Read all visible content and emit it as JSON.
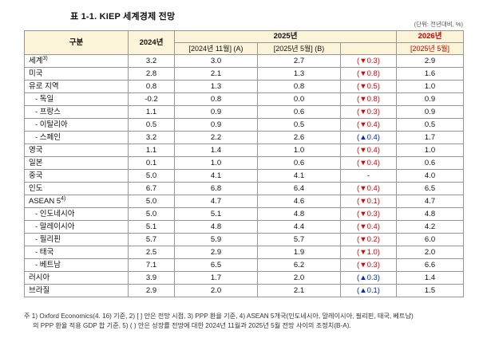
{
  "page": {
    "title": "표 1-1. KIEP 세계경제 전망",
    "unit_note": "(단위: 전년대비, %)"
  },
  "table": {
    "headers": {
      "category": "구분",
      "y2024": "2024년",
      "y2025": "2025년",
      "y2026": "2026년",
      "sub_a": "[2024년 11월] (A)",
      "sub_b": "[2025년 5월] (B)",
      "sub_delta": "",
      "sub_2026": "[2025년 5월]"
    },
    "rows": [
      {
        "label": "세계",
        "sup": "3)",
        "indent": false,
        "v2024": "3.2",
        "a": "3.0",
        "b": "2.7",
        "delta": "(▼0.3)",
        "delta_dir": "down",
        "v2026": "2.9"
      },
      {
        "label": "미국",
        "indent": false,
        "v2024": "2.8",
        "a": "2.1",
        "b": "1.3",
        "delta": "(▼0.8)",
        "delta_dir": "down",
        "v2026": "1.6"
      },
      {
        "label": "유로 지역",
        "indent": false,
        "v2024": "0.8",
        "a": "1.3",
        "b": "0.8",
        "delta": "(▼0.5)",
        "delta_dir": "down",
        "v2026": "1.0"
      },
      {
        "label": "- 독일",
        "indent": true,
        "v2024": "-0.2",
        "a": "0.8",
        "b": "0.0",
        "delta": "(▼0.8)",
        "delta_dir": "down",
        "v2026": "0.9"
      },
      {
        "label": "- 프랑스",
        "indent": true,
        "v2024": "1.1",
        "a": "0.9",
        "b": "0.6",
        "delta": "(▼0.3)",
        "delta_dir": "down",
        "v2026": "0.9"
      },
      {
        "label": "- 이탈리아",
        "indent": true,
        "v2024": "0.5",
        "a": "0.9",
        "b": "0.5",
        "delta": "(▼0.4)",
        "delta_dir": "down",
        "v2026": "0.5"
      },
      {
        "label": "- 스페인",
        "indent": true,
        "v2024": "3.2",
        "a": "2.2",
        "b": "2.6",
        "delta": "(▲0.4)",
        "delta_dir": "up",
        "v2026": "1.7"
      },
      {
        "label": "영국",
        "indent": false,
        "v2024": "1.1",
        "a": "1.4",
        "b": "1.0",
        "delta": "(▼0.4)",
        "delta_dir": "down",
        "v2026": "1.0"
      },
      {
        "label": "일본",
        "indent": false,
        "v2024": "0.1",
        "a": "1.0",
        "b": "0.6",
        "delta": "(▼0.4)",
        "delta_dir": "down",
        "v2026": "0.6"
      },
      {
        "label": "중국",
        "indent": false,
        "v2024": "5.0",
        "a": "4.1",
        "b": "4.1",
        "delta": "-",
        "delta_dir": "none",
        "v2026": "4.0"
      },
      {
        "label": "인도",
        "indent": false,
        "v2024": "6.7",
        "a": "6.8",
        "b": "6.4",
        "delta": "(▼0.4)",
        "delta_dir": "down",
        "v2026": "6.5"
      },
      {
        "label": "ASEAN 5",
        "sup": "4)",
        "indent": false,
        "v2024": "5.0",
        "a": "4.7",
        "b": "4.6",
        "delta": "(▼0.1)",
        "delta_dir": "down",
        "v2026": "4.7"
      },
      {
        "label": "- 인도네시아",
        "indent": true,
        "v2024": "5.0",
        "a": "5.1",
        "b": "4.8",
        "delta": "(▼0.3)",
        "delta_dir": "down",
        "v2026": "4.8"
      },
      {
        "label": "- 말레이시아",
        "indent": true,
        "v2024": "5.1",
        "a": "4.8",
        "b": "4.4",
        "delta": "(▼0.4)",
        "delta_dir": "down",
        "v2026": "4.2"
      },
      {
        "label": "- 필리핀",
        "indent": true,
        "v2024": "5.7",
        "a": "5.9",
        "b": "5.7",
        "delta": "(▼0.2)",
        "delta_dir": "down",
        "v2026": "6.0"
      },
      {
        "label": "- 태국",
        "indent": true,
        "v2024": "2.5",
        "a": "2.9",
        "b": "1.9",
        "delta": "(▼1.0)",
        "delta_dir": "down",
        "v2026": "2.0"
      },
      {
        "label": "- 베트남",
        "indent": true,
        "v2024": "7.1",
        "a": "6.5",
        "b": "6.2",
        "delta": "(▼0.3)",
        "delta_dir": "down",
        "v2026": "6.6"
      },
      {
        "label": "러시아",
        "indent": false,
        "v2024": "3.9",
        "a": "1.7",
        "b": "2.0",
        "delta": "(▲0.3)",
        "delta_dir": "up",
        "v2026": "1.4"
      },
      {
        "label": "브라질",
        "indent": false,
        "v2024": "2.9",
        "a": "2.0",
        "b": "2.1",
        "delta": "(▲0.1)",
        "delta_dir": "up",
        "v2026": "1.5"
      }
    ]
  },
  "footnotes": [
    "주 1) Oxford Economics(4. 16) 기준, 2) [ ] 안은 전망 시점, 3) PPP 환율 기준, 4) ASEAN 5개국(인도네시아, 말레이시아, 필리핀, 태국, 베트남)",
    "의 PPP 환율 적용 GDP 합 기준, 5) ( ) 안은 성장률 전망에 대한 2024년 11월과 2025년 5월 전망 사이의 조정치(B-A)."
  ],
  "colors": {
    "header_bg": "#FCF4D9",
    "down_red": "#E60000",
    "up_blue": "#0026CC",
    "header_2026_red": "#CC0000"
  }
}
